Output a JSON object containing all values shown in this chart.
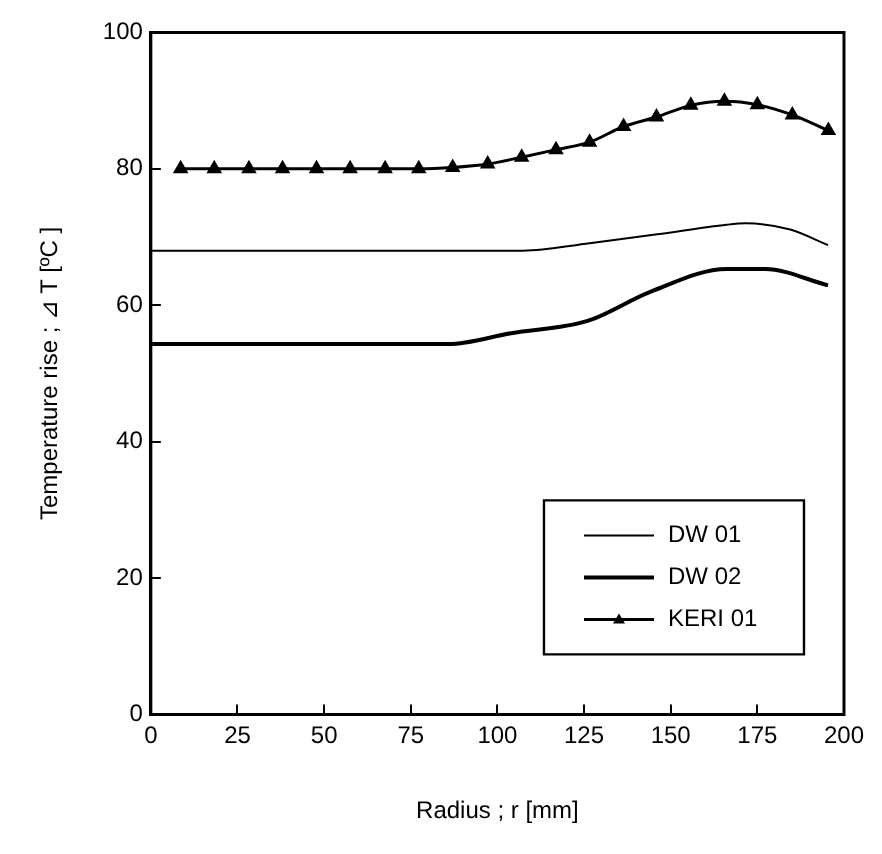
{
  "chart_data": {
    "type": "line",
    "xlabel": "Radius ; r [mm]",
    "ylabel": "Temperature rise ; ⊿ T [ºC ]",
    "xlim": [
      0,
      200
    ],
    "xticks": [
      0,
      25,
      50,
      75,
      100,
      125,
      150,
      175,
      200
    ],
    "ylim": [
      0,
      100
    ],
    "yticks": [
      0,
      20,
      40,
      60,
      80,
      100
    ],
    "grid": false,
    "legend": "bottom right",
    "line_style": "solid",
    "series": [
      {
        "name": "DW 01",
        "color": "#000000",
        "marker": "none",
        "x": [
          0,
          107.4,
          126.6,
          146.1,
          166.2,
          171.7,
          184.5,
          195.4
        ],
        "values": [
          68,
          68,
          69.1,
          70.4,
          71.8,
          72,
          71.1,
          68.8
        ]
      },
      {
        "name": "DW 02",
        "color": "#000000",
        "marker": "none",
        "x": [
          0,
          85.8,
          104,
          126,
          144.3,
          166.2,
          177.2,
          195.4
        ],
        "values": [
          54.3,
          54.3,
          55.9,
          57.7,
          62,
          65.3,
          65.3,
          62.9
        ]
      },
      {
        "name": "KERI 01",
        "color": "#000000",
        "marker": "triangle",
        "x": [
          8.6,
          18.3,
          28.3,
          38,
          47.8,
          57.5,
          67.6,
          77.3,
          87.1,
          97.2,
          107,
          116.9,
          126.6,
          136.4,
          145.9,
          155.8,
          165.5,
          175,
          185.1,
          195.5
        ],
        "values": [
          80,
          80,
          80,
          80,
          80,
          80,
          80,
          80,
          80.2,
          80.7,
          81.7,
          82.8,
          83.9,
          86.2,
          87.6,
          89.3,
          89.9,
          89.4,
          87.9,
          85.6
        ]
      }
    ]
  }
}
